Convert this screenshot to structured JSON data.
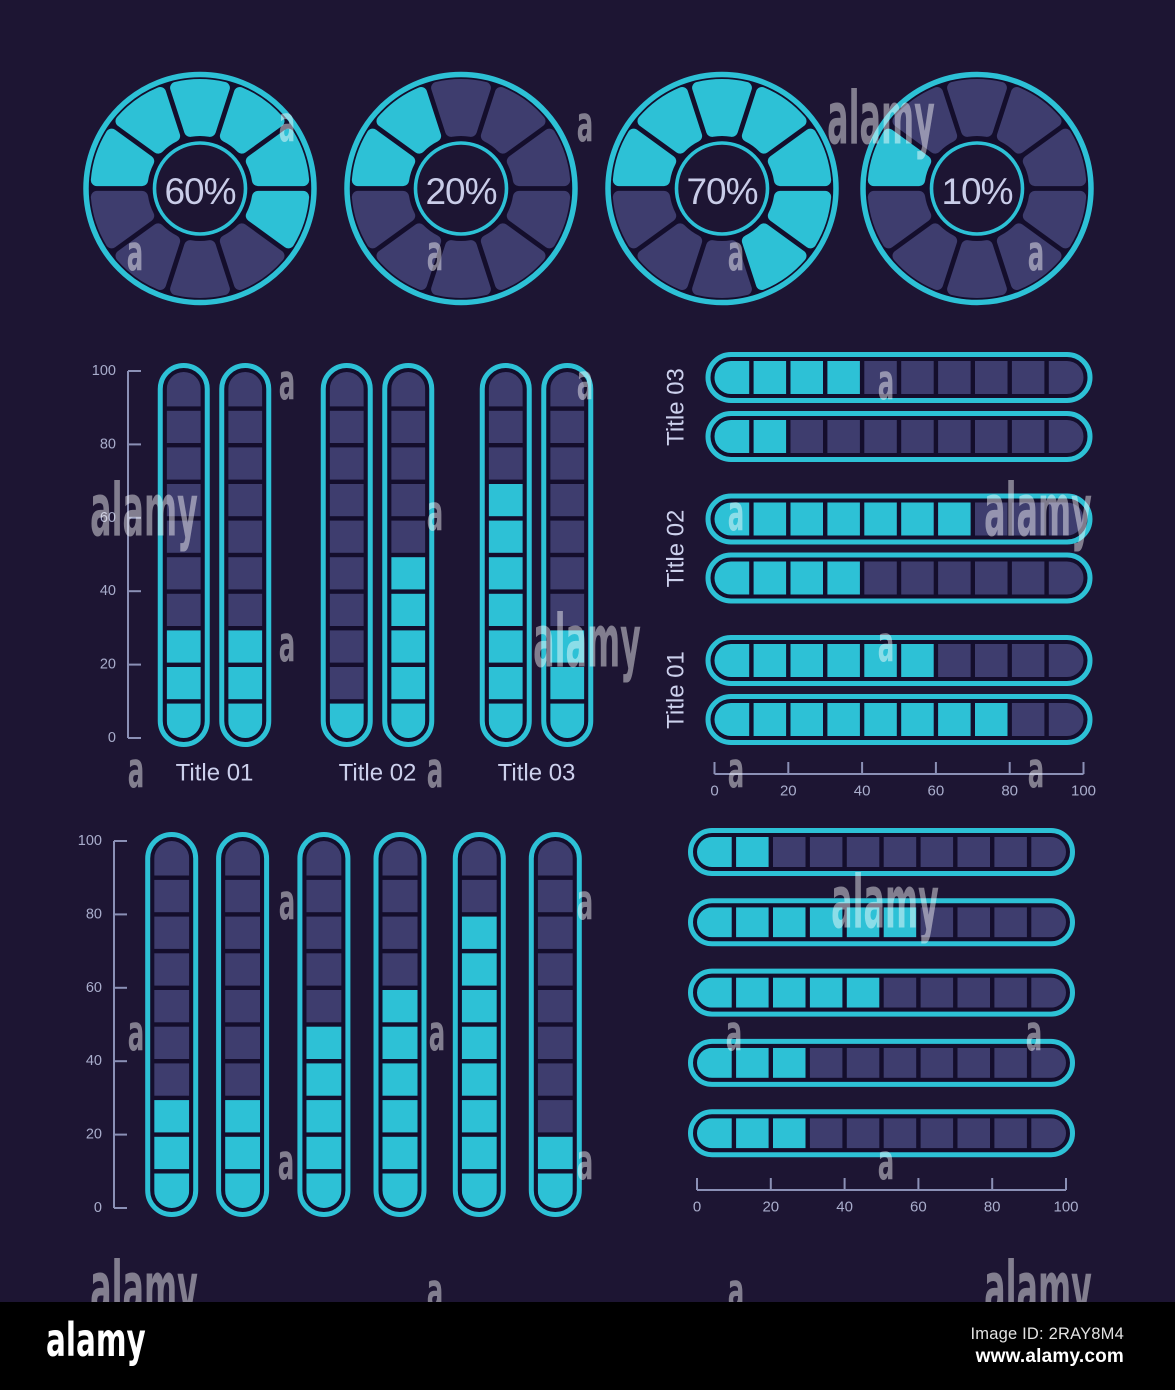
{
  "colors": {
    "background": "#1d1533",
    "outline_dark": "#140e2c",
    "cyan": "#2dc1d6",
    "navy": "#3e3d6e",
    "axis": "#8b90b6",
    "tick_label": "#a9adcc",
    "title_text": "#ccd0ec",
    "percent_text": "#c9cce8",
    "watermark": "rgba(255,255,255,0.45)",
    "footer_bg": "#000000",
    "footer_text": "#ffffff",
    "footer_muted": "#e2e2e2"
  },
  "chart_data": [
    {
      "id": "circular-progress-set",
      "type": "pie",
      "subtype": "segmented-progress-wheel",
      "segments_per_wheel": 10,
      "unit": "%",
      "values": [
        60,
        20,
        70,
        10
      ],
      "center_labels": [
        "60%",
        "20%",
        "70%",
        "10%"
      ],
      "fill_direction": "clockwise-from-left",
      "legend_position": "none"
    },
    {
      "id": "vertical-grouped-progress",
      "type": "bar",
      "subtype": "segmented-pill",
      "orientation": "vertical",
      "categories": [
        "Title 01",
        "Title 02",
        "Title 03"
      ],
      "series": [
        [
          30,
          30
        ],
        [
          10,
          50
        ],
        [
          70,
          30
        ]
      ],
      "segments_per_bar": 10,
      "ylabel": "",
      "ylim": [
        0,
        100
      ],
      "axis_ticks": [
        0,
        20,
        40,
        60,
        80,
        100
      ],
      "grid": false
    },
    {
      "id": "horizontal-grouped-progress",
      "type": "bar",
      "subtype": "segmented-pill",
      "orientation": "horizontal",
      "categories": [
        "Title 03",
        "Title 02",
        "Title 01"
      ],
      "series": [
        [
          40,
          20
        ],
        [
          70,
          40
        ],
        [
          60,
          80
        ]
      ],
      "segments_per_bar": 10,
      "xlabel": "",
      "xlim": [
        0,
        100
      ],
      "axis_ticks": [
        0,
        20,
        40,
        60,
        80,
        100
      ],
      "grid": false
    },
    {
      "id": "vertical-progress-row",
      "type": "bar",
      "subtype": "segmented-pill",
      "orientation": "vertical",
      "categories": [
        "",
        "",
        "",
        "",
        "",
        ""
      ],
      "values": [
        30,
        30,
        50,
        60,
        80,
        20
      ],
      "segments_per_bar": 10,
      "ylim": [
        0,
        100
      ],
      "axis_ticks": [
        0,
        20,
        40,
        60,
        80,
        100
      ],
      "grid": false
    },
    {
      "id": "horizontal-progress-stack",
      "type": "bar",
      "subtype": "segmented-pill",
      "orientation": "horizontal",
      "categories": [
        "",
        "",
        "",
        "",
        ""
      ],
      "values": [
        20,
        60,
        50,
        30,
        30
      ],
      "segments_per_bar": 10,
      "xlim": [
        0,
        100
      ],
      "axis_ticks": [
        0,
        20,
        40,
        60,
        80,
        100
      ],
      "grid": false
    }
  ],
  "watermark": {
    "small_text": "a",
    "large_text": "alamy"
  },
  "footer": {
    "brand": "alamy",
    "image_id_label": "Image ID:",
    "image_id": "2RAY8M4",
    "image_id_line": "Image ID: 2RAY8M4",
    "url": "www.alamy.com"
  }
}
